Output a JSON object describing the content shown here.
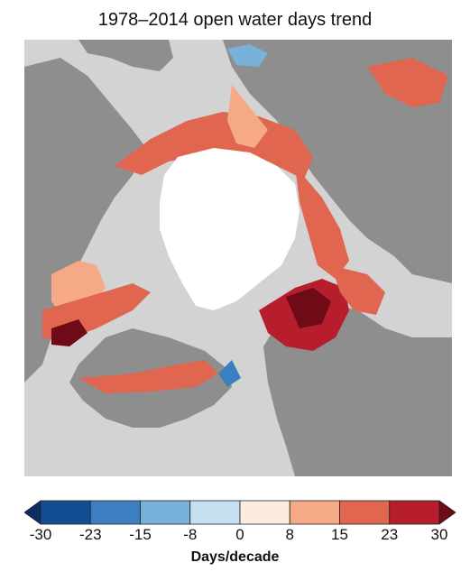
{
  "title": "1978–2014 open water days trend",
  "legend": {
    "units": "Days/decade",
    "ticks": [
      "-30",
      "-23",
      "-15",
      "-8",
      "0",
      "8",
      "15",
      "23",
      "30"
    ],
    "colors": [
      "#134d94",
      "#3b7fc0",
      "#78b1da",
      "#c5e0f0",
      "#fdebe0",
      "#f5a986",
      "#e0664f",
      "#b61e2e"
    ],
    "arrow_low_color": "#0c2f62",
    "arrow_high_color": "#6e0b17",
    "range": [
      -30,
      30
    ]
  },
  "map": {
    "ocean_no_data_color": "#d3d3d3",
    "land_color": "#8e8e8e",
    "perennial_ice_color": "#ffffff"
  }
}
